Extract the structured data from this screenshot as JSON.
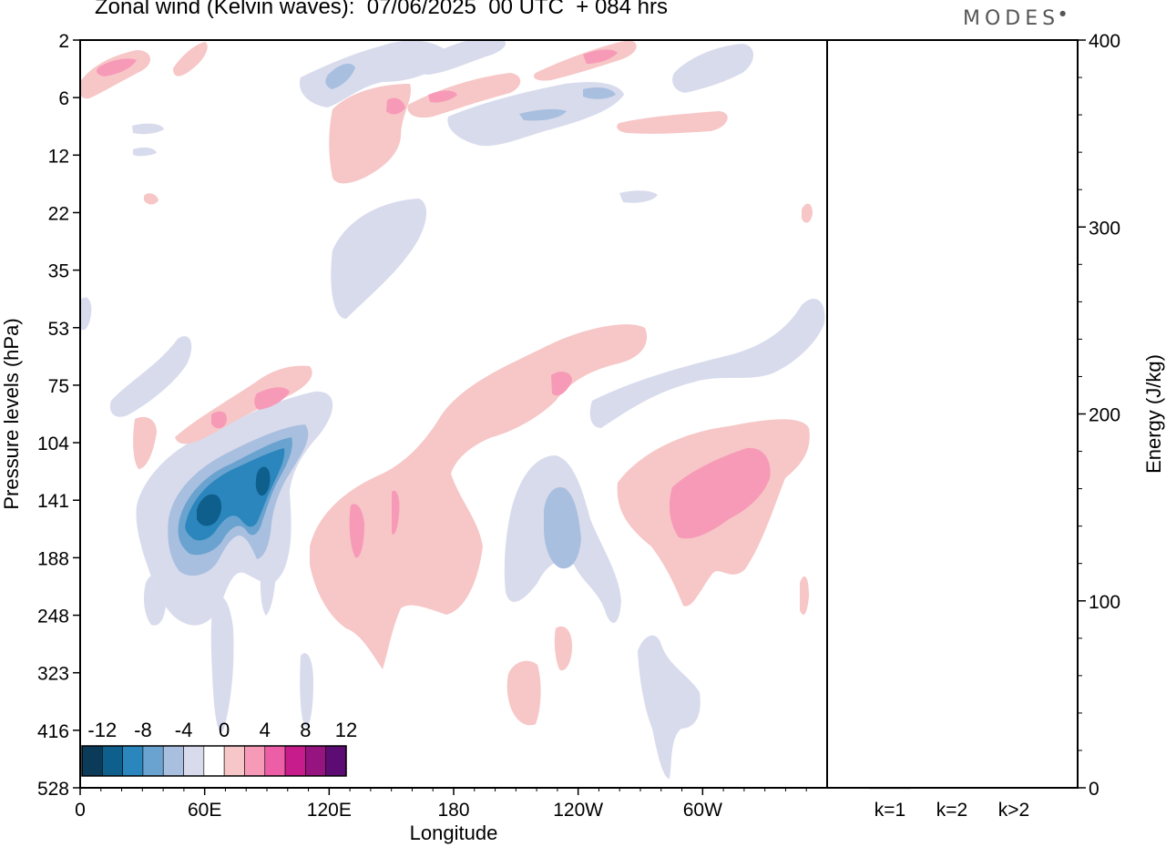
{
  "title": "Zonal wind (Kelvin waves):  07/06/2025  00 UTC  + 084 hrs",
  "logo": "MODES",
  "chart_data": [
    {
      "type": "heatmap",
      "variable": "Zonal wind (Kelvin waves)",
      "xlabel": "Longitude",
      "ylabel": "Pressure levels (hPa)",
      "x_ticks": [
        "0",
        "60E",
        "120E",
        "180",
        "120W",
        "60W"
      ],
      "x_tick_degrees": [
        0,
        60,
        120,
        180,
        240,
        300
      ],
      "xlim": [
        0,
        360
      ],
      "y_ticks": [
        "2",
        "6",
        "12",
        "22",
        "35",
        "53",
        "75",
        "104",
        "141",
        "188",
        "248",
        "323",
        "416",
        "528"
      ],
      "y_axis": "inverted",
      "colorbar": {
        "labels": [
          "-12",
          "-8",
          "-4",
          "0",
          "4",
          "8",
          "12"
        ],
        "colors": [
          "#0b3b58",
          "#0e5f8c",
          "#2b86bd",
          "#6aa3cf",
          "#a9bfdf",
          "#d8dbec",
          "#ffffff",
          "#f7c6c6",
          "#f79ab8",
          "#ec5ea6",
          "#c71c8b",
          "#961480",
          "#5c0c72"
        ]
      },
      "features": [
        {
          "sign": "negative",
          "min_level": -10,
          "lon": [
            50,
            100
          ],
          "pressure_hPa": [
            104,
            200
          ]
        },
        {
          "sign": "positive",
          "min_level": 4,
          "lon": [
            110,
            190
          ],
          "pressure_hPa": [
            104,
            330
          ]
        },
        {
          "sign": "negative",
          "min_level": -4,
          "lon": [
            210,
            250
          ],
          "pressure_hPa": [
            120,
            270
          ]
        },
        {
          "sign": "positive",
          "min_level": 6,
          "lon": [
            260,
            350
          ],
          "pressure_hPa": [
            100,
            260
          ]
        },
        {
          "sign": "positive",
          "min_level": 4,
          "lon": [
            150,
            275
          ],
          "pressure_hPa": [
            50,
            140
          ]
        },
        {
          "sign": "negative",
          "min_level": -4,
          "lon": [
            120,
            165
          ],
          "pressure_hPa": [
            20,
            50
          ]
        }
      ]
    },
    {
      "type": "bar",
      "categories": [
        "k=1",
        "k=2",
        "k>2"
      ],
      "values": [
        0.2,
        0.4,
        0.3
      ],
      "ylabel": "Energy (J/kg)",
      "ylim": [
        0,
        400
      ],
      "y_ticks": [
        "0",
        "100",
        "200",
        "300",
        "400"
      ]
    }
  ]
}
